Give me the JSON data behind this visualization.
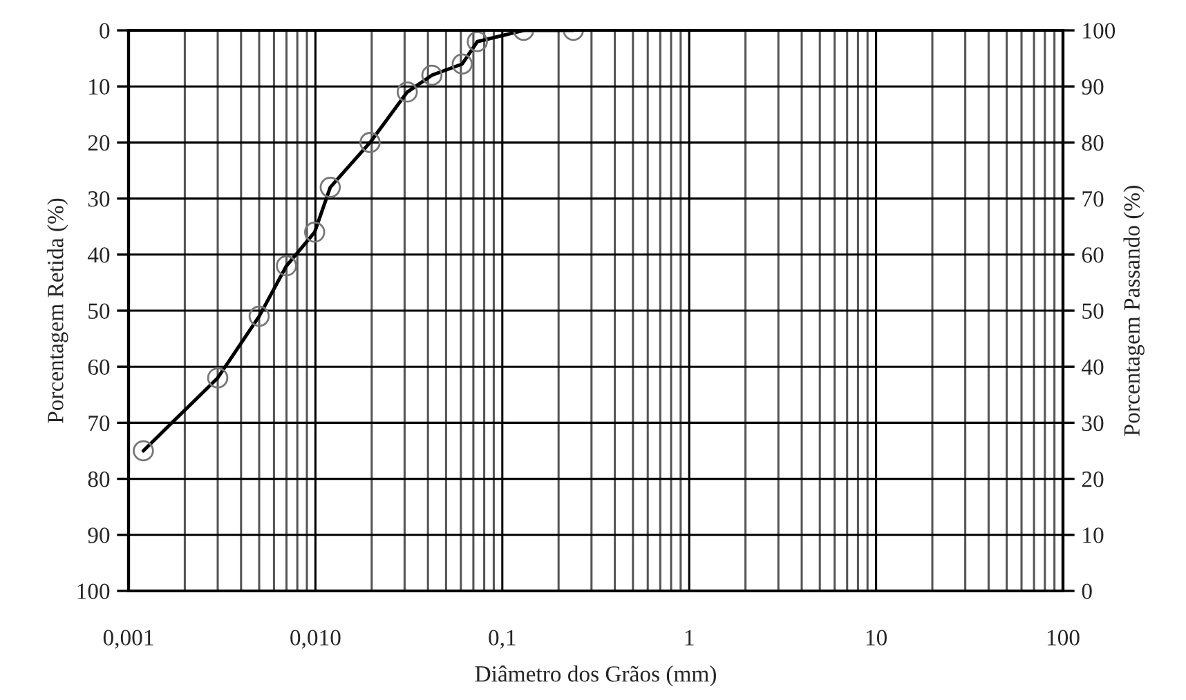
{
  "chart_data": {
    "type": "line",
    "xlabel": "Diâmetro dos Grãos (mm)",
    "ylabel": "Porcentagem Retida (%)",
    "y2label": "Porcentagem Passando (%)",
    "log": "x",
    "grid": true,
    "marker": "circle",
    "line_style": "solid",
    "xlim": [
      0.001,
      100
    ],
    "xticks": [
      {
        "value": 0.001,
        "label": "0,001"
      },
      {
        "value": 0.002,
        "label": null
      },
      {
        "value": 0.003,
        "label": null
      },
      {
        "value": 0.004,
        "label": null
      },
      {
        "value": 0.005,
        "label": null
      },
      {
        "value": 0.006,
        "label": null
      },
      {
        "value": 0.007,
        "label": null
      },
      {
        "value": 0.008,
        "label": null
      },
      {
        "value": 0.009,
        "label": null
      },
      {
        "value": 0.01,
        "label": "0,010"
      },
      {
        "value": 0.02,
        "label": null
      },
      {
        "value": 0.03,
        "label": null
      },
      {
        "value": 0.04,
        "label": null
      },
      {
        "value": 0.05,
        "label": null
      },
      {
        "value": 0.06,
        "label": null
      },
      {
        "value": 0.07,
        "label": null
      },
      {
        "value": 0.08,
        "label": null
      },
      {
        "value": 0.09,
        "label": null
      },
      {
        "value": 0.1,
        "label": "0,1"
      },
      {
        "value": 0.2,
        "label": null
      },
      {
        "value": 0.3,
        "label": null
      },
      {
        "value": 0.4,
        "label": null
      },
      {
        "value": 0.5,
        "label": null
      },
      {
        "value": 0.6,
        "label": null
      },
      {
        "value": 0.7,
        "label": null
      },
      {
        "value": 0.8,
        "label": null
      },
      {
        "value": 0.9,
        "label": null
      },
      {
        "value": 1,
        "label": "1"
      },
      {
        "value": 2,
        "label": null
      },
      {
        "value": 3,
        "label": null
      },
      {
        "value": 4,
        "label": null
      },
      {
        "value": 5,
        "label": null
      },
      {
        "value": 6,
        "label": null
      },
      {
        "value": 7,
        "label": null
      },
      {
        "value": 8,
        "label": null
      },
      {
        "value": 9,
        "label": null
      },
      {
        "value": 10,
        "label": "10"
      },
      {
        "value": 20,
        "label": null
      },
      {
        "value": 30,
        "label": null
      },
      {
        "value": 40,
        "label": null
      },
      {
        "value": 50,
        "label": null
      },
      {
        "value": 60,
        "label": null
      },
      {
        "value": 70,
        "label": null
      },
      {
        "value": 80,
        "label": null
      },
      {
        "value": 90,
        "label": null
      },
      {
        "value": 100,
        "label": "100"
      }
    ],
    "ylim": [
      100,
      0
    ],
    "yticks": [
      0,
      10,
      20,
      30,
      40,
      50,
      60,
      70,
      80,
      90,
      100
    ],
    "y2lim": [
      0,
      100
    ],
    "y2ticks": [
      0,
      10,
      20,
      30,
      40,
      50,
      60,
      70,
      80,
      90,
      100
    ],
    "series": [
      {
        "color": "#000000",
        "axis": "y2",
        "x": [
          0.0012,
          0.003,
          0.005,
          0.007,
          0.0099,
          0.012,
          0.0196,
          0.031,
          0.042,
          0.061,
          0.0735,
          0.13,
          0.24
        ],
        "values": [
          25,
          38,
          49,
          58,
          64,
          72,
          80,
          89,
          92,
          94,
          98,
          100,
          100
        ]
      }
    ]
  }
}
